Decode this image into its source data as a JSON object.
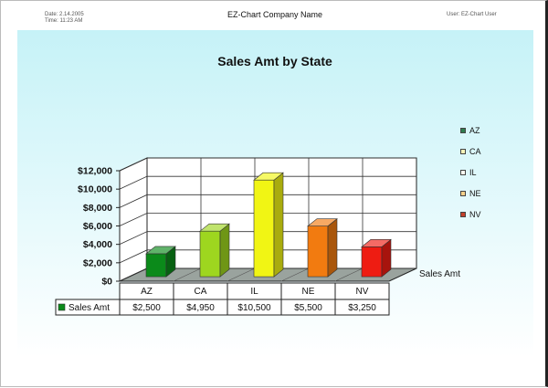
{
  "header": {
    "date_line": "Date: 2.14.2005",
    "time_line": "Time: 11:23 AM",
    "company": "EZ-Chart Company Name",
    "user": "User: EZ-Chart User"
  },
  "colors": {
    "background_top": "#c6f2f7",
    "background_bottom": "#ffffff",
    "floor": "#9aa39e"
  },
  "chart_data": {
    "type": "bar",
    "title": "Sales Amt by State",
    "categories": [
      "AZ",
      "CA",
      "IL",
      "NE",
      "NV"
    ],
    "series": [
      {
        "name": "Sales Amt",
        "values": [
          2500,
          4950,
          10500,
          5500,
          3250
        ],
        "value_labels": [
          "$2,500",
          "$4,950",
          "$10,500",
          "$5,500",
          "$3,250"
        ],
        "colors": [
          "#0b8a1a",
          "#9ed61f",
          "#f1f514",
          "#f27b10",
          "#ee1c12"
        ],
        "legend_colors": [
          "#2e7d4f",
          "#f7f4b8",
          "#fffff0",
          "#f7d08a",
          "#c4402b"
        ]
      }
    ],
    "y_ticks": [
      "$0",
      "$2,000",
      "$4,000",
      "$6,000",
      "$8,000",
      "$10,000",
      "$12,000"
    ],
    "ylim": [
      0,
      12000
    ],
    "depth_axis_label": "Sales Amt",
    "legend_position": "right",
    "grid": true
  }
}
